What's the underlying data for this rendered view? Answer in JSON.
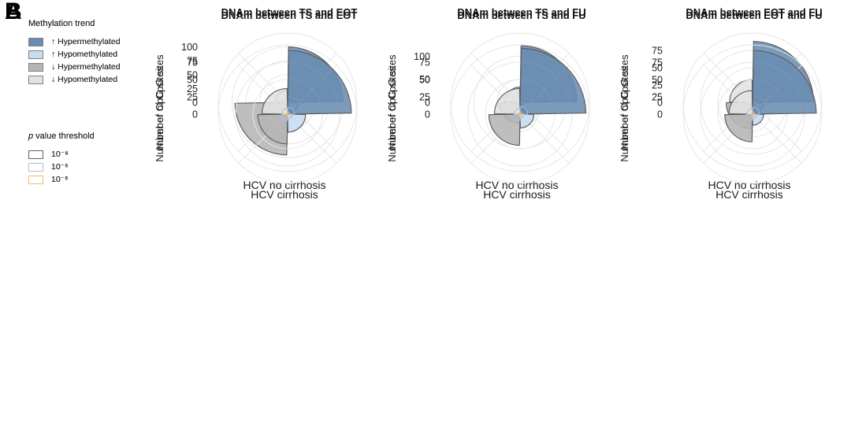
{
  "colors": {
    "hyper_up": "#6a8cb0",
    "hypo_up": "#c8dbf0",
    "hyper_down": "#b5b5b5",
    "hypo_down": "#e3e3e3",
    "p_border_1": "#606060",
    "p_border_2": "#a8bcdc",
    "p_border_3": "#f2bb6a",
    "grid": "#e6e6e6",
    "background": "#ffffff"
  },
  "panels": [
    {
      "label": "A",
      "legend": {
        "trend_header": "Methylation trend",
        "trend_items": [
          {
            "key": "hyper_up",
            "label": "↑ Hypermethylated"
          },
          {
            "key": "hypo_up",
            "label": "↑ Hypomethylated"
          },
          {
            "key": "hyper_down",
            "label": "↓ Hypermethylated"
          },
          {
            "key": "hypo_down",
            "label": "↓ Hypomethylated"
          }
        ],
        "pvalue_header_p": "p",
        "pvalue_header_rest": " value threshold",
        "pvalue_items": [
          {
            "key": "p_border_1",
            "label": "10⁻⁴"
          },
          {
            "key": "p_border_2",
            "label": "10⁻⁵"
          },
          {
            "key": "p_border_3",
            "label": "10⁻⁶"
          }
        ]
      }
    },
    {
      "label": "B",
      "legend": {
        "trend_header": "Methylation trend",
        "trend_items": [
          {
            "key": "hyper_up",
            "label": "↑ Hypermethylated"
          },
          {
            "key": "hypo_up",
            "label": "↑ Hypomethylated"
          },
          {
            "key": "hyper_down",
            "label": "↓ Hypermethylated"
          },
          {
            "key": "hypo_down",
            "label": "↓ Hypomethylated"
          }
        ],
        "pvalue_header_p": "p",
        "pvalue_header_rest": " value threshold",
        "pvalue_items": [
          {
            "key": "p_border_1",
            "label": "10⁻⁵"
          },
          {
            "key": "p_border_2",
            "label": "10⁻⁶"
          },
          {
            "key": "p_border_3",
            "label": "10⁻⁷"
          }
        ]
      }
    }
  ],
  "chart_data": [
    {
      "type": "polar-bar-coxcomb",
      "panel": "A",
      "title": "DNAm between TS and EOT",
      "caption": "HCV no cirrhosis",
      "radial_axis_label": "Number of CpG sites",
      "radial_ticks": [
        0,
        25,
        50,
        75,
        100
      ],
      "ring_values": [
        25,
        50,
        75,
        100,
        125
      ],
      "thresholds": [
        "10⁻⁴",
        "10⁻⁵",
        "10⁻⁶"
      ],
      "series": [
        {
          "key": "hyper_up",
          "name": "↑ Hypermethylated",
          "values": [
            100,
            12,
            3
          ]
        },
        {
          "key": "hypo_up",
          "name": "↑ Hypomethylated",
          "values": [
            20,
            7,
            2
          ]
        },
        {
          "key": "hyper_down",
          "name": "↓ Hypermethylated",
          "values": [
            95,
            10,
            3
          ]
        },
        {
          "key": "hypo_down",
          "name": "↓ Hypomethylated",
          "values": [
            22,
            7,
            2
          ]
        }
      ]
    },
    {
      "type": "polar-bar-coxcomb",
      "panel": "A",
      "title": "DNAm between TS and FU",
      "caption": "HCV no cirrhosis",
      "radial_axis_label": "Number of CpG sites",
      "radial_ticks": [
        0,
        50,
        100
      ],
      "ring_values": [
        50,
        100,
        150
      ],
      "thresholds": [
        "10⁻⁴",
        "10⁻⁵",
        "10⁻⁶"
      ],
      "series": [
        {
          "key": "hyper_up",
          "name": "↑ Hypermethylated",
          "values": [
            123,
            25,
            4
          ]
        },
        {
          "key": "hypo_up",
          "name": "↑ Hypomethylated",
          "values": [
            8,
            4,
            2
          ]
        },
        {
          "key": "hyper_down",
          "name": "↓ Hypermethylated",
          "values": [
            45,
            10,
            3
          ]
        },
        {
          "key": "hypo_down",
          "name": "↓ Hypomethylated",
          "values": [
            33,
            8,
            2
          ]
        }
      ]
    },
    {
      "type": "polar-bar-coxcomb",
      "panel": "A",
      "title": "DNAm between EOT and FU",
      "caption": "HCV no cirrhosis",
      "radial_axis_label": "Number of CpG sites",
      "radial_ticks": [
        0,
        25,
        50,
        75
      ],
      "ring_values": [
        25,
        50,
        75,
        100
      ],
      "thresholds": [
        "10⁻⁴",
        "10⁻⁵",
        "10⁻⁶"
      ],
      "series": [
        {
          "key": "hyper_up",
          "name": "↑ Hypermethylated",
          "values": [
            88,
            10,
            3
          ]
        },
        {
          "key": "hypo_up",
          "name": "↑ Hypomethylated",
          "values": [
            16,
            6,
            2
          ]
        },
        {
          "key": "hyper_down",
          "name": "↓ Hypermethylated",
          "values": [
            38,
            9,
            3
          ]
        },
        {
          "key": "hypo_down",
          "name": "↓ Hypomethylated",
          "values": [
            33,
            8,
            2
          ]
        }
      ]
    },
    {
      "type": "polar-bar-coxcomb",
      "panel": "B",
      "title": "DNAm between TS and EOT",
      "caption": "HCV cirrhosis",
      "radial_axis_label": "Number of CpG sites",
      "radial_ticks": [
        0,
        25,
        50,
        75
      ],
      "ring_values": [
        25,
        50,
        75,
        100
      ],
      "thresholds": [
        "10⁻⁵",
        "10⁻⁶",
        "10⁻⁷"
      ],
      "series": [
        {
          "key": "hyper_up",
          "name": "↑ Hypermethylated",
          "values": [
            92,
            10,
            3
          ]
        },
        {
          "key": "hypo_up",
          "name": "↑ Hypomethylated",
          "values": [
            26,
            7,
            2
          ]
        },
        {
          "key": "hyper_down",
          "name": "↓ Hypermethylated",
          "values": [
            43,
            9,
            3
          ]
        },
        {
          "key": "hypo_down",
          "name": "↓ Hypomethylated",
          "values": [
            37,
            8,
            2
          ]
        }
      ]
    },
    {
      "type": "polar-bar-coxcomb",
      "panel": "B",
      "title": "DNAm between TS and FU",
      "caption": "HCV cirrhosis",
      "radial_axis_label": "Number of CpG sites",
      "radial_ticks": [
        0,
        25,
        50,
        75
      ],
      "ring_values": [
        25,
        50,
        75,
        100
      ],
      "thresholds": [
        "10⁻⁵",
        "10⁻⁶",
        "10⁻⁷"
      ],
      "series": [
        {
          "key": "hyper_up",
          "name": "↑ Hypermethylated",
          "values": [
            95,
            11,
            3
          ]
        },
        {
          "key": "hypo_up",
          "name": "↑ Hypomethylated",
          "values": [
            20,
            6,
            2
          ]
        },
        {
          "key": "hyper_down",
          "name": "↓ Hypermethylated",
          "values": [
            45,
            9,
            3
          ]
        },
        {
          "key": "hypo_down",
          "name": "↓ Hypomethylated",
          "values": [
            37,
            8,
            2
          ]
        }
      ]
    },
    {
      "type": "polar-bar-coxcomb",
      "panel": "B",
      "title": "DNAm between EOT and FU",
      "caption": "HCV cirrhosis",
      "radial_axis_label": "Number of CpG sites",
      "radial_ticks": [
        0,
        25,
        50,
        75
      ],
      "ring_values": [
        25,
        50,
        75,
        100
      ],
      "thresholds": [
        "10⁻⁵",
        "10⁻⁶",
        "10⁻⁷"
      ],
      "series": [
        {
          "key": "hyper_up",
          "name": "↑ Hypermethylated",
          "values": [
            92,
            10,
            3
          ]
        },
        {
          "key": "hypo_up",
          "name": "↑ Hypomethylated",
          "values": [
            16,
            6,
            2
          ]
        },
        {
          "key": "hyper_down",
          "name": "↓ Hypermethylated",
          "values": [
            40,
            9,
            3
          ]
        },
        {
          "key": "hypo_down",
          "name": "↓ Hypomethylated",
          "values": [
            34,
            8,
            2
          ]
        }
      ]
    }
  ]
}
